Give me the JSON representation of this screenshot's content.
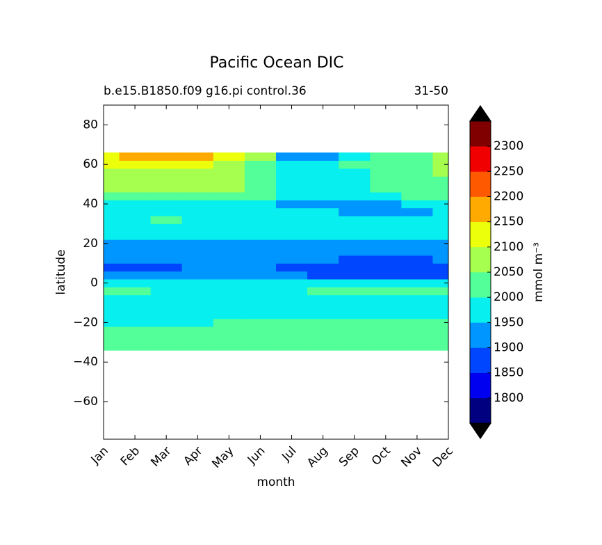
{
  "chart_data": {
    "type": "contour",
    "title": "Pacific Ocean DIC",
    "subtitle_left": "b.e15.B1850.f09 g16.pi control.36",
    "subtitle_right": "31-50",
    "x_label": "month",
    "y_label": "latitude",
    "categories": [
      "Jan",
      "Feb",
      "Mar",
      "Apr",
      "May",
      "Jun",
      "Jul",
      "Aug",
      "Sep",
      "Oct",
      "Nov",
      "Dec"
    ],
    "ylim": [
      -79,
      90
    ],
    "yticks": [
      {
        "value": -60,
        "label": "−60"
      },
      {
        "value": -40,
        "label": "−40"
      },
      {
        "value": -20,
        "label": "−20"
      },
      0,
      20,
      40,
      60,
      80
    ],
    "y": [
      -32,
      -28,
      -24,
      -20,
      -16,
      -12,
      -8,
      -4,
      0,
      4,
      8,
      12,
      16,
      20,
      24,
      28,
      32,
      36,
      40,
      44,
      48,
      52,
      56,
      60,
      64
    ],
    "z": [
      [
        2020,
        2020,
        2020,
        2020,
        2020,
        2020,
        2020,
        2020,
        2020,
        2020,
        2020,
        2020
      ],
      [
        2020,
        2020,
        2020,
        2020,
        2020,
        2020,
        2020,
        2020,
        2020,
        2020,
        2020,
        2020
      ],
      [
        2020,
        2020,
        2020,
        2020,
        2020,
        2020,
        2020,
        2020,
        2020,
        2020,
        2020,
        2020
      ],
      [
        1998,
        1995,
        1995,
        1995,
        2003,
        2005,
        2010,
        2010,
        2010,
        2010,
        2008,
        2005
      ],
      [
        1975,
        1975,
        1975,
        1975,
        1975,
        1975,
        1975,
        1985,
        1990,
        1990,
        1985,
        1980
      ],
      [
        1975,
        1975,
        1975,
        1975,
        1975,
        1975,
        1975,
        1975,
        1975,
        1975,
        1975,
        1975
      ],
      [
        1975,
        1975,
        1975,
        1975,
        1975,
        1975,
        1975,
        1975,
        1975,
        1975,
        1975,
        1975
      ],
      [
        2005,
        2005,
        1990,
        1985,
        1985,
        1990,
        1995,
        2003,
        2005,
        2005,
        2005,
        2005
      ],
      [
        1955,
        1955,
        1955,
        1955,
        1955,
        1955,
        1955,
        1955,
        1955,
        1955,
        1955,
        1955
      ],
      [
        1920,
        1920,
        1920,
        1920,
        1920,
        1920,
        1920,
        1890,
        1885,
        1880,
        1880,
        1885
      ],
      [
        1880,
        1880,
        1885,
        1920,
        1920,
        1920,
        1890,
        1880,
        1875,
        1875,
        1875,
        1880
      ],
      [
        1920,
        1920,
        1920,
        1920,
        1920,
        1920,
        1915,
        1905,
        1895,
        1890,
        1895,
        1900
      ],
      [
        1930,
        1930,
        1930,
        1930,
        1930,
        1930,
        1930,
        1930,
        1930,
        1930,
        1930,
        1930
      ],
      [
        1945,
        1945,
        1945,
        1945,
        1945,
        1945,
        1945,
        1945,
        1945,
        1945,
        1945,
        1945
      ],
      [
        1975,
        1975,
        1975,
        1975,
        1975,
        1975,
        1975,
        1975,
        1975,
        1975,
        1975,
        1975
      ],
      [
        1975,
        1975,
        1975,
        1975,
        1975,
        1975,
        1975,
        1975,
        1975,
        1975,
        1975,
        1975
      ],
      [
        1975,
        1990,
        2005,
        1985,
        1975,
        1975,
        1975,
        1975,
        1975,
        1975,
        1975,
        1975
      ],
      [
        1975,
        1985,
        1990,
        1975,
        1975,
        1970,
        1960,
        1950,
        1945,
        1940,
        1945,
        1965
      ],
      [
        1995,
        1995,
        1995,
        1995,
        1990,
        1975,
        1945,
        1945,
        1945,
        1945,
        1950,
        1995
      ],
      [
        2030,
        2040,
        2040,
        2040,
        2030,
        2010,
        1975,
        1975,
        1975,
        1990,
        2010,
        2020
      ],
      [
        2060,
        2060,
        2060,
        2060,
        2055,
        2020,
        1975,
        1975,
        1985,
        2010,
        2020,
        2030
      ],
      [
        2070,
        2075,
        2075,
        2070,
        2065,
        2030,
        1975,
        1975,
        1990,
        2010,
        2025,
        2040
      ],
      [
        2080,
        2090,
        2090,
        2085,
        2070,
        2030,
        1975,
        1975,
        1995,
        2020,
        2040,
        2055
      ],
      [
        2110,
        2120,
        2120,
        2110,
        2090,
        2040,
        1970,
        1975,
        2000,
        2030,
        2045,
        2060
      ],
      [
        2120,
        2160,
        2170,
        2150,
        2110,
        2050,
        1940,
        1945,
        1990,
        2030,
        2040,
        2070
      ]
    ],
    "levels": [
      1750,
      1800,
      1850,
      1900,
      1950,
      2000,
      2050,
      2100,
      2150,
      2200,
      2250,
      2300,
      2350
    ],
    "colors": [
      "#000080",
      "#0000f0",
      "#0046ff",
      "#0096ff",
      "#07f0ef",
      "#52ff99",
      "#a6ff4f",
      "#ecff0b",
      "#ffaa00",
      "#ff5900",
      "#f00000",
      "#800000"
    ],
    "colorbar_ticks": [
      1800,
      1850,
      1900,
      1950,
      2000,
      2050,
      2100,
      2150,
      2200,
      2250,
      2300
    ],
    "colorbar_label": "mmol m⁻³"
  }
}
